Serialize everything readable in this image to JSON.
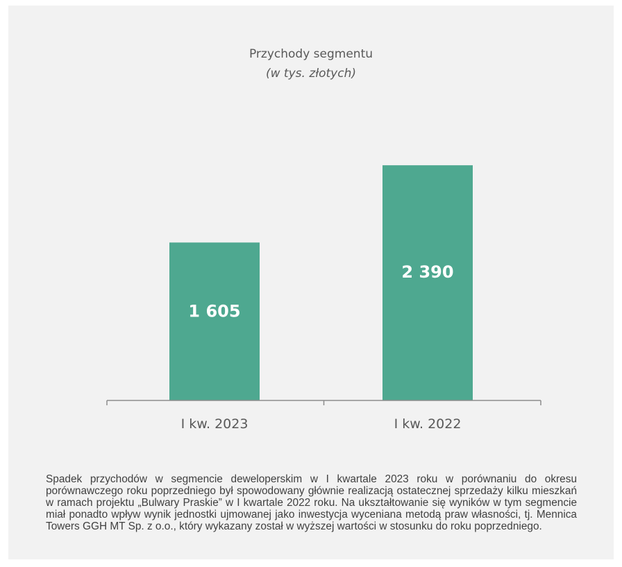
{
  "chart_data": {
    "type": "bar",
    "title": "Przychody segmentu",
    "subtitle": "(w tys. złotych)",
    "categories": [
      "I kw. 2023",
      "I kw. 2022"
    ],
    "values": [
      1605,
      2390
    ],
    "value_labels": [
      "1 605",
      "2 390"
    ],
    "xlabel": "",
    "ylabel": "",
    "ylim": [
      0,
      2800
    ],
    "grid": false,
    "legend": "none",
    "bar_color": "#4ea890",
    "axis_color": "#8c8c8c"
  },
  "note": {
    "text": "Spadek przychodów w segmencie deweloperskim w I kwartale 2023 roku w porównaniu do okresu porównawczego roku poprzedniego był spowodowany głównie realizacją ostatecznej sprzedaży kilku mieszkań w ramach projektu „Bulwary Praskie” w I kwartale 2022 roku. Na ukształtowanie się wyników w tym segmencie miał ponadto wpływ wynik jednostki ujmowanej jako inwestycja wyceniana metodą praw własności, tj. Mennica Towers GGH MT Sp. z o.o., który wykazany został w wyższej wartości w stosunku do roku poprzedniego."
  }
}
